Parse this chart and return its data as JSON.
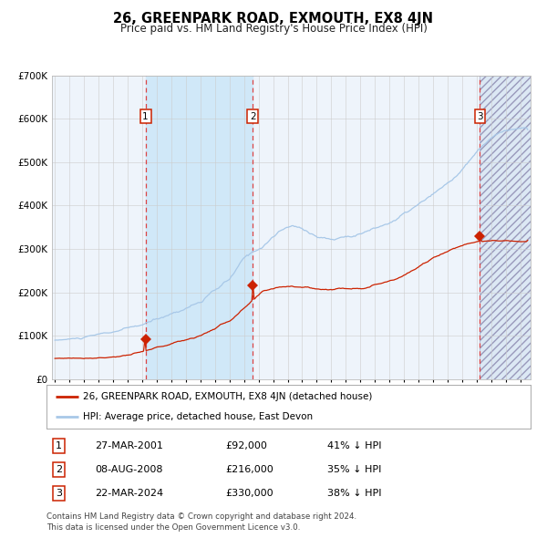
{
  "title": "26, GREENPARK ROAD, EXMOUTH, EX8 4JN",
  "subtitle": "Price paid vs. HM Land Registry's House Price Index (HPI)",
  "ylim": [
    0,
    700000
  ],
  "yticks": [
    0,
    100000,
    200000,
    300000,
    400000,
    500000,
    600000,
    700000
  ],
  "ytick_labels": [
    "£0",
    "£100K",
    "£200K",
    "£300K",
    "£400K",
    "£500K",
    "£600K",
    "£700K"
  ],
  "x_start_year": 1995.0,
  "x_end_year": 2027.5,
  "hpi_color": "#a8c8e8",
  "price_color": "#cc2200",
  "background_plot": "#eef4fb",
  "background_fig": "#ffffff",
  "grid_color": "#cccccc",
  "sale1_year": 2001.23,
  "sale1_price": 92000,
  "sale1_label": "1",
  "sale1_date": "27-MAR-2001",
  "sale1_hpi_pct": "41%",
  "sale2_year": 2008.6,
  "sale2_price": 216000,
  "sale2_label": "2",
  "sale2_date": "08-AUG-2008",
  "sale2_hpi_pct": "35%",
  "sale3_year": 2024.22,
  "sale3_price": 330000,
  "sale3_label": "3",
  "sale3_date": "22-MAR-2024",
  "sale3_hpi_pct": "38%",
  "legend_label_red": "26, GREENPARK ROAD, EXMOUTH, EX8 4JN (detached house)",
  "legend_label_blue": "HPI: Average price, detached house, East Devon",
  "footer": "Contains HM Land Registry data © Crown copyright and database right 2024.\nThis data is licensed under the Open Government Licence v3.0.",
  "shaded_region_color": "#d0e8f8",
  "dashed_color": "#dd4444"
}
